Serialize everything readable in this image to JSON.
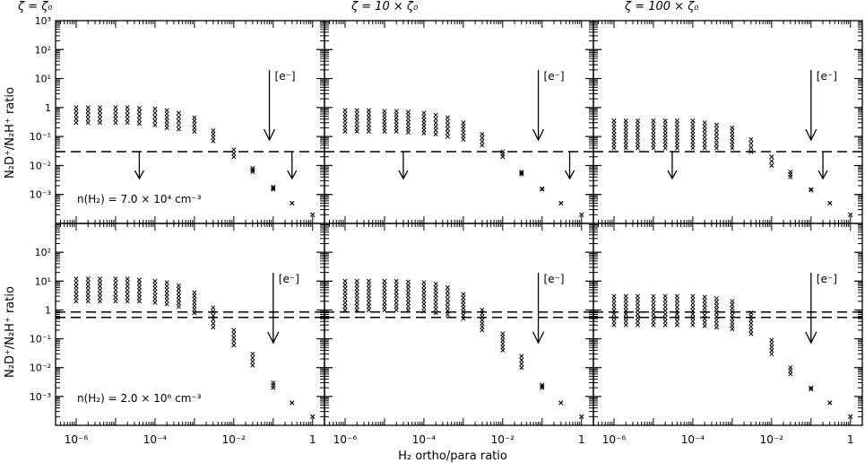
{
  "figure": {
    "xlabel": "H₂ ortho/para ratio",
    "ylabel": "N₂D⁺/N₂H⁺ ratio",
    "col_titles": [
      "ζ = ζ₀",
      "ζ = 10 × ζ₀",
      "ζ = 100 × ζ₀"
    ],
    "row_labels": [
      "n(H₂) = 7.0 × 10⁴ cm⁻³",
      "n(H₂) = 2.0 × 10⁶ cm⁻³"
    ],
    "electron_label": "[e⁻]",
    "x_tick_labels": [
      "10⁻⁶",
      "10⁻⁴",
      "10⁻²",
      "1"
    ],
    "y_tick_labels": [
      "10⁻³",
      "10⁻²",
      "10⁻¹",
      "1",
      "10¹",
      "10²",
      "10³"
    ]
  },
  "chart_data": {
    "type": "scatter",
    "x_scale": "log",
    "y_scale": "log",
    "xlim": [
      3e-07,
      2
    ],
    "ylim": [
      0.0001,
      1000
    ],
    "marker": "x",
    "x": [
      1e-06,
      2e-06,
      4e-06,
      1e-05,
      2e-05,
      4e-05,
      0.0001,
      0.0002,
      0.0004,
      0.001,
      0.003,
      0.01,
      0.03,
      0.1,
      0.3,
      1
    ],
    "panels": [
      {
        "row": 0,
        "col": 0,
        "y_ranges": [
          [
            0.3,
            1.0
          ],
          [
            0.3,
            1.0
          ],
          [
            0.3,
            1.0
          ],
          [
            0.3,
            1.0
          ],
          [
            0.3,
            1.0
          ],
          [
            0.28,
            0.95
          ],
          [
            0.25,
            0.9
          ],
          [
            0.2,
            0.8
          ],
          [
            0.18,
            0.65
          ],
          [
            0.15,
            0.45
          ],
          [
            0.07,
            0.16
          ],
          [
            0.02,
            0.035
          ],
          [
            0.006,
            0.008
          ],
          [
            0.0015,
            0.0018
          ],
          [
            0.0005,
            0.0005
          ],
          [
            0.0002,
            0.0002
          ]
        ],
        "observed": [
          0.03
        ],
        "limit_arrows_x": [
          4e-05,
          0.3
        ],
        "electron_arrow_x": 0.08
      },
      {
        "row": 0,
        "col": 1,
        "y_ranges": [
          [
            0.15,
            0.8
          ],
          [
            0.15,
            0.8
          ],
          [
            0.15,
            0.8
          ],
          [
            0.15,
            0.75
          ],
          [
            0.15,
            0.75
          ],
          [
            0.14,
            0.7
          ],
          [
            0.13,
            0.65
          ],
          [
            0.12,
            0.55
          ],
          [
            0.1,
            0.45
          ],
          [
            0.08,
            0.3
          ],
          [
            0.05,
            0.12
          ],
          [
            0.02,
            0.03
          ],
          [
            0.005,
            0.006
          ],
          [
            0.0015,
            0.0016
          ],
          [
            0.0005,
            0.0005
          ],
          [
            0.0002,
            0.0002
          ]
        ],
        "observed": [
          0.03
        ],
        "limit_arrows_x": [
          3e-05,
          0.5
        ],
        "electron_arrow_x": 0.08
      },
      {
        "row": 0,
        "col": 2,
        "y_ranges": [
          [
            0.04,
            0.35
          ],
          [
            0.04,
            0.35
          ],
          [
            0.04,
            0.35
          ],
          [
            0.04,
            0.35
          ],
          [
            0.04,
            0.35
          ],
          [
            0.04,
            0.35
          ],
          [
            0.04,
            0.35
          ],
          [
            0.04,
            0.3
          ],
          [
            0.04,
            0.25
          ],
          [
            0.04,
            0.2
          ],
          [
            0.03,
            0.08
          ],
          [
            0.01,
            0.02
          ],
          [
            0.004,
            0.006
          ],
          [
            0.0014,
            0.0015
          ],
          [
            0.0005,
            0.0005
          ],
          [
            0.0002,
            0.0002
          ]
        ],
        "observed": [
          0.03
        ],
        "limit_arrows_x": [
          3e-05,
          0.2
        ],
        "electron_arrow_x": 0.1
      },
      {
        "row": 1,
        "col": 0,
        "y_ranges": [
          [
            2,
            12
          ],
          [
            2,
            12
          ],
          [
            2,
            12
          ],
          [
            2,
            12
          ],
          [
            2,
            12
          ],
          [
            2,
            11
          ],
          [
            1.8,
            10
          ],
          [
            1.6,
            9
          ],
          [
            1.3,
            7
          ],
          [
            0.8,
            4
          ],
          [
            0.25,
            1.2
          ],
          [
            0.06,
            0.2
          ],
          [
            0.012,
            0.03
          ],
          [
            0.002,
            0.003
          ],
          [
            0.0006,
            0.0006
          ],
          [
            0.0002,
            0.0002
          ]
        ],
        "observed": [
          0.55,
          0.85
        ],
        "electron_arrow_x": 0.1
      },
      {
        "row": 1,
        "col": 1,
        "y_ranges": [
          [
            1,
            10
          ],
          [
            1,
            10
          ],
          [
            1,
            10
          ],
          [
            1,
            10
          ],
          [
            1,
            10
          ],
          [
            1,
            9.5
          ],
          [
            0.9,
            9
          ],
          [
            0.8,
            8
          ],
          [
            0.7,
            6
          ],
          [
            0.5,
            3.5
          ],
          [
            0.2,
            1.0
          ],
          [
            0.04,
            0.15
          ],
          [
            0.01,
            0.025
          ],
          [
            0.002,
            0.0025
          ],
          [
            0.0006,
            0.0006
          ],
          [
            0.0002,
            0.0002
          ]
        ],
        "observed": [
          0.55,
          0.85
        ],
        "electron_arrow_x": 0.08
      },
      {
        "row": 1,
        "col": 2,
        "y_ranges": [
          [
            0.3,
            3
          ],
          [
            0.3,
            3
          ],
          [
            0.3,
            3
          ],
          [
            0.3,
            3
          ],
          [
            0.3,
            3
          ],
          [
            0.3,
            3
          ],
          [
            0.3,
            3
          ],
          [
            0.28,
            2.8
          ],
          [
            0.25,
            2.5
          ],
          [
            0.22,
            2
          ],
          [
            0.15,
            0.8
          ],
          [
            0.03,
            0.09
          ],
          [
            0.006,
            0.01
          ],
          [
            0.0018,
            0.002
          ],
          [
            0.0006,
            0.0006
          ],
          [
            0.0002,
            0.0002
          ]
        ],
        "observed": [
          0.55,
          0.85
        ],
        "electron_arrow_x": 0.1
      }
    ]
  }
}
